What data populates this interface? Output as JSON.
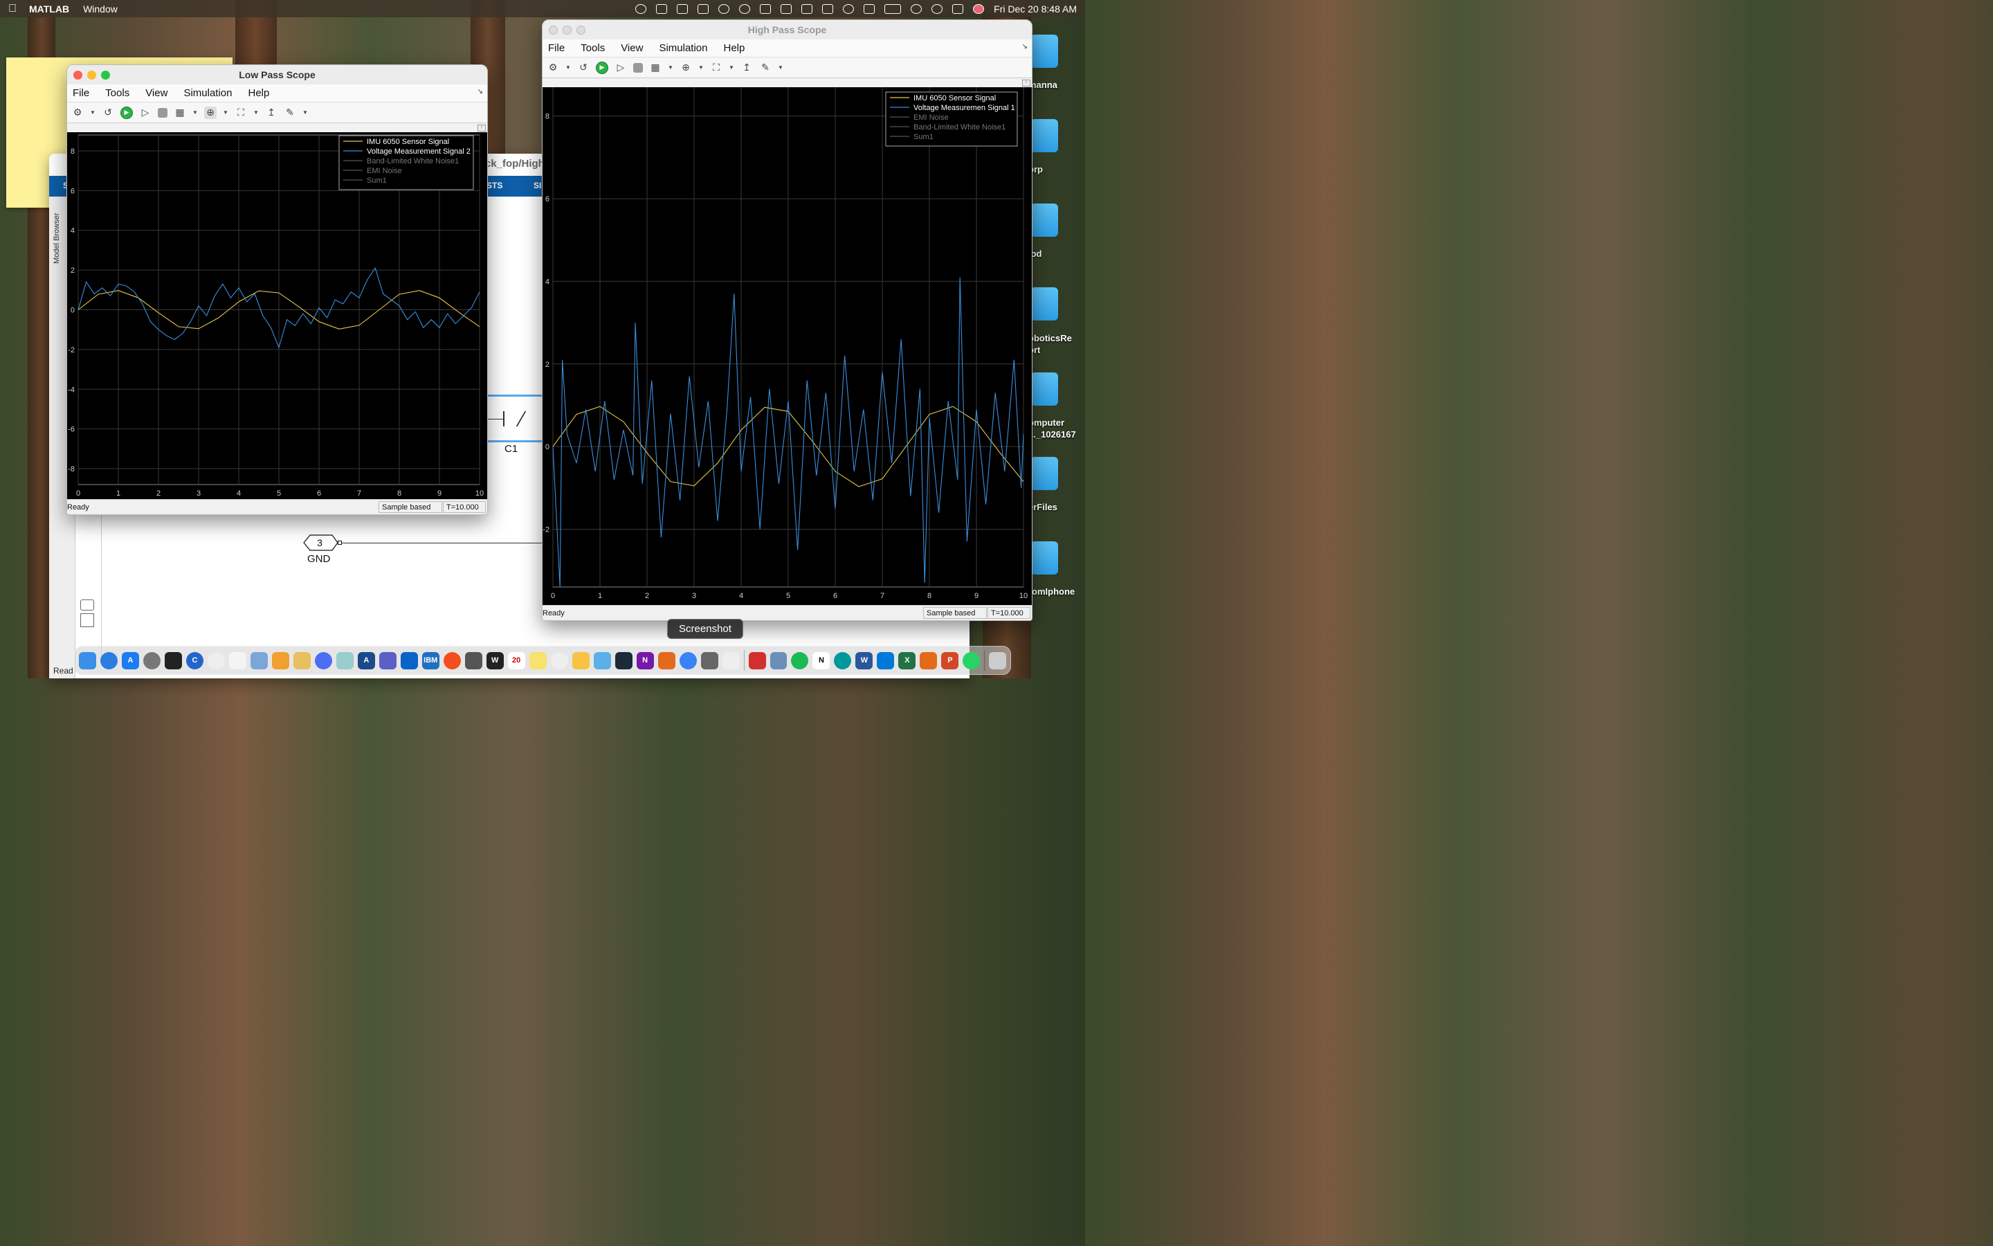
{
  "menubar": {
    "app_name": "MATLAB",
    "menu_window": "Window",
    "clock": "Fri Dec 20  8:48 AM"
  },
  "desktop": {
    "labels": [
      "manna",
      "orp",
      "lod",
      "oboticsRe\nort",
      "omputer\n..._1026167",
      "erFiles",
      "romIphone"
    ]
  },
  "simulink": {
    "title": "ck_fop/High",
    "ribbon_tab_1": "STS",
    "ribbon_tab_2": "SI",
    "ribbon_tab_0": "S",
    "model_browser": "Model Browser",
    "status": "Read",
    "c1_label": "C1",
    "gnd_port_number": "3",
    "gnd_label": "GND"
  },
  "low_pass": {
    "title": "Low Pass Scope",
    "menus": [
      "File",
      "Tools",
      "View",
      "Simulation",
      "Help"
    ],
    "status_ready": "Ready",
    "status_mode": "Sample based",
    "status_time": "T=10.000",
    "legend": [
      "IMU 6050 Sensor Signal",
      "Voltage Measurement Signal 2",
      "Band-Limited White Noise1",
      "EMI Noise",
      "Sum1"
    ]
  },
  "high_pass": {
    "title": "High Pass Scope",
    "menus": [
      "File",
      "Tools",
      "View",
      "Simulation",
      "Help"
    ],
    "status_ready": "Ready",
    "status_mode": "Sample based",
    "status_time": "T=10.000",
    "legend": [
      "IMU 6050 Sensor Signal",
      "Voltage Measuremen Signal 1",
      "EMI Noise",
      "Band-Limited White Noise1",
      "Sum1"
    ]
  },
  "chart_data": [
    {
      "type": "line",
      "x_ticks": [
        0,
        1,
        2,
        3,
        4,
        5,
        6,
        7,
        8,
        9,
        10
      ],
      "y_ticks": [
        8,
        6,
        4,
        2,
        0,
        -2,
        -4,
        -6,
        -8
      ],
      "xlim": [
        0,
        10
      ],
      "ylim": [
        -8.8,
        8.8
      ],
      "grid": true,
      "legend_position": "top-right",
      "series": [
        {
          "name": "IMU 6050 Sensor Signal",
          "color": "#e6c84a",
          "x": [
            0,
            0.5,
            1,
            1.5,
            2,
            2.5,
            3,
            3.5,
            4,
            4.5,
            5,
            5.5,
            6,
            6.5,
            7,
            7.5,
            8,
            8.5,
            9,
            9.5,
            10
          ],
          "y": [
            0,
            0.78,
            0.97,
            0.6,
            -0.15,
            -0.85,
            -0.95,
            -0.4,
            0.4,
            0.95,
            0.85,
            0.15,
            -0.6,
            -0.97,
            -0.78,
            0,
            0.78,
            0.97,
            0.6,
            -0.15,
            -0.85
          ]
        },
        {
          "name": "Voltage Measurement Signal 2",
          "color": "#3a8fdd",
          "x": [
            0,
            0.2,
            0.4,
            0.6,
            0.8,
            1,
            1.2,
            1.4,
            1.6,
            1.8,
            2,
            2.2,
            2.4,
            2.6,
            2.8,
            3,
            3.2,
            3.4,
            3.6,
            3.8,
            4,
            4.2,
            4.4,
            4.6,
            4.8,
            5,
            5.2,
            5.4,
            5.6,
            5.8,
            6,
            6.2,
            6.4,
            6.6,
            6.8,
            7,
            7.2,
            7.4,
            7.6,
            7.8,
            8,
            8.2,
            8.4,
            8.6,
            8.8,
            9,
            9.2,
            9.4,
            9.6,
            9.8,
            10
          ],
          "y": [
            0,
            1.4,
            0.8,
            1.1,
            0.7,
            1.3,
            1.2,
            0.9,
            0.3,
            -0.6,
            -1.0,
            -1.3,
            -1.5,
            -1.2,
            -0.6,
            0.2,
            -0.3,
            0.7,
            1.3,
            0.6,
            1.1,
            0.4,
            0.8,
            -0.3,
            -0.9,
            -1.9,
            -0.5,
            -0.8,
            -0.2,
            -0.7,
            0.1,
            -0.4,
            0.5,
            0.3,
            0.9,
            0.6,
            1.5,
            2.1,
            0.8,
            0.5,
            0.2,
            -0.5,
            -0.1,
            -0.9,
            -0.5,
            -0.9,
            -0.2,
            -0.7,
            -0.3,
            0.1,
            0.9
          ]
        }
      ]
    },
    {
      "type": "line",
      "x_ticks": [
        0,
        1,
        2,
        3,
        4,
        5,
        6,
        7,
        8,
        9,
        10
      ],
      "y_ticks": [
        8,
        6,
        4,
        2,
        0,
        -2
      ],
      "xlim": [
        0,
        10
      ],
      "ylim": [
        -3.4,
        8.8
      ],
      "grid": true,
      "legend_position": "top-right",
      "series": [
        {
          "name": "IMU 6050 Sensor Signal",
          "color": "#e6c84a",
          "x": [
            0,
            0.5,
            1,
            1.5,
            2,
            2.5,
            3,
            3.5,
            4,
            4.5,
            5,
            5.5,
            6,
            6.5,
            7,
            7.5,
            8,
            8.5,
            9,
            9.5,
            10
          ],
          "y": [
            0,
            0.78,
            0.97,
            0.6,
            -0.15,
            -0.85,
            -0.95,
            -0.4,
            0.4,
            0.95,
            0.85,
            0.15,
            -0.6,
            -0.97,
            -0.78,
            0,
            0.78,
            0.97,
            0.6,
            -0.15,
            -0.85
          ]
        },
        {
          "name": "Voltage Measuremen Signal 1",
          "color": "#3a8fdd",
          "x": [
            0,
            0.15,
            0.2,
            0.3,
            0.5,
            0.7,
            0.9,
            1.1,
            1.3,
            1.5,
            1.7,
            1.75,
            1.9,
            2.1,
            2.3,
            2.5,
            2.7,
            2.9,
            3.1,
            3.3,
            3.5,
            3.7,
            3.85,
            4,
            4.2,
            4.4,
            4.6,
            4.8,
            5.0,
            5.2,
            5.4,
            5.6,
            5.8,
            6.0,
            6.2,
            6.4,
            6.6,
            6.8,
            7.0,
            7.2,
            7.4,
            7.6,
            7.8,
            7.9,
            8.0,
            8.2,
            8.4,
            8.6,
            8.65,
            8.8,
            9.0,
            9.2,
            9.4,
            9.6,
            9.8,
            9.95,
            10
          ],
          "y": [
            0,
            -3.4,
            2.1,
            0.3,
            -0.4,
            0.9,
            -0.6,
            1.1,
            -0.8,
            0.4,
            -0.7,
            3.0,
            -0.9,
            1.6,
            -2.2,
            0.8,
            -1.3,
            1.7,
            -0.5,
            1.1,
            -1.8,
            0.9,
            3.7,
            -0.6,
            1.2,
            -2.0,
            1.4,
            -0.9,
            1.1,
            -2.5,
            1.6,
            -0.7,
            1.3,
            -1.5,
            2.2,
            -0.6,
            0.9,
            -1.3,
            1.8,
            -0.4,
            2.6,
            -1.2,
            1.4,
            -3.3,
            0.7,
            -1.6,
            1.1,
            -0.8,
            4.1,
            -2.3,
            0.9,
            -1.4,
            1.3,
            -0.6,
            2.1,
            -1.0,
            0.3
          ]
        }
      ]
    }
  ]
}
